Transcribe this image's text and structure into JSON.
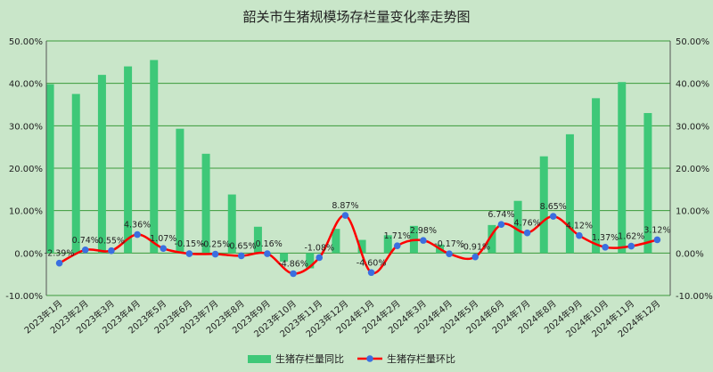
{
  "chart_data": {
    "type": "bar",
    "title": "韶关市生猪规模场存栏量变化率走势图",
    "categories": [
      "2023年1月",
      "2023年2月",
      "2023年3月",
      "2023年4月",
      "2023年5月",
      "2023年6月",
      "2023年7月",
      "2023年8月",
      "2023年9月",
      "2023年10月",
      "2023年11月",
      "2023年12月",
      "2024年1月",
      "2024年2月",
      "2024年3月",
      "2024年4月",
      "2024年5月",
      "2024年6月",
      "2024年7月",
      "2024年8月",
      "2024年9月",
      "2024年10月",
      "2024年11月",
      "2024年12月"
    ],
    "series": [
      {
        "name": "生猪存栏量同比",
        "type": "bar",
        "color": "#3ec878",
        "values": [
          39.8,
          37.5,
          42.0,
          44.0,
          45.5,
          29.3,
          23.4,
          13.8,
          6.2,
          -2.0,
          -3.6,
          5.7,
          3.1,
          4.2,
          6.4,
          2.0,
          0.2,
          6.6,
          12.3,
          22.8,
          28.0,
          36.5,
          40.3,
          33.0
        ]
      },
      {
        "name": "生猪存栏量环比",
        "type": "line",
        "color": "#ff0000",
        "marker_color": "#3a6fe0",
        "values": [
          -2.39,
          0.74,
          0.55,
          4.36,
          1.07,
          -0.15,
          -0.25,
          -0.65,
          -0.16,
          -4.86,
          -1.08,
          8.87,
          -4.6,
          1.71,
          2.98,
          -0.17,
          -0.91,
          6.74,
          4.76,
          8.65,
          4.12,
          1.37,
          1.62,
          3.12
        ],
        "labels": [
          "-2.39%",
          "0.74%",
          "0.55%",
          "4.36%",
          "1.07%",
          "-0.15%",
          "-0.25%",
          "-0.65%",
          "-0.16%",
          "-4.86%",
          "-1.08%",
          "8.87%",
          "-4.60%",
          "1.71%",
          "2.98%",
          "-0.17%",
          "-0.91%",
          "6.74%",
          "4.76%",
          "8.65%",
          "4.12%",
          "1.37%",
          "1.62%",
          "3.12%"
        ]
      }
    ],
    "ylim": [
      -10,
      50
    ],
    "y_ticks": [
      "-10.00%",
      "0.00%",
      "10.00%",
      "20.00%",
      "30.00%",
      "40.00%",
      "50.00%"
    ],
    "y_tick_values": [
      -10,
      0,
      10,
      20,
      30,
      40,
      50
    ],
    "y2_ticks": [
      "-10.00%",
      "0.00%",
      "10.00%",
      "20.00%",
      "30.00%",
      "40.00%",
      "50.00%"
    ],
    "grid": true,
    "legend_position": "bottom",
    "background": "#c9e6c9",
    "grid_color": "#3a9a3a"
  }
}
